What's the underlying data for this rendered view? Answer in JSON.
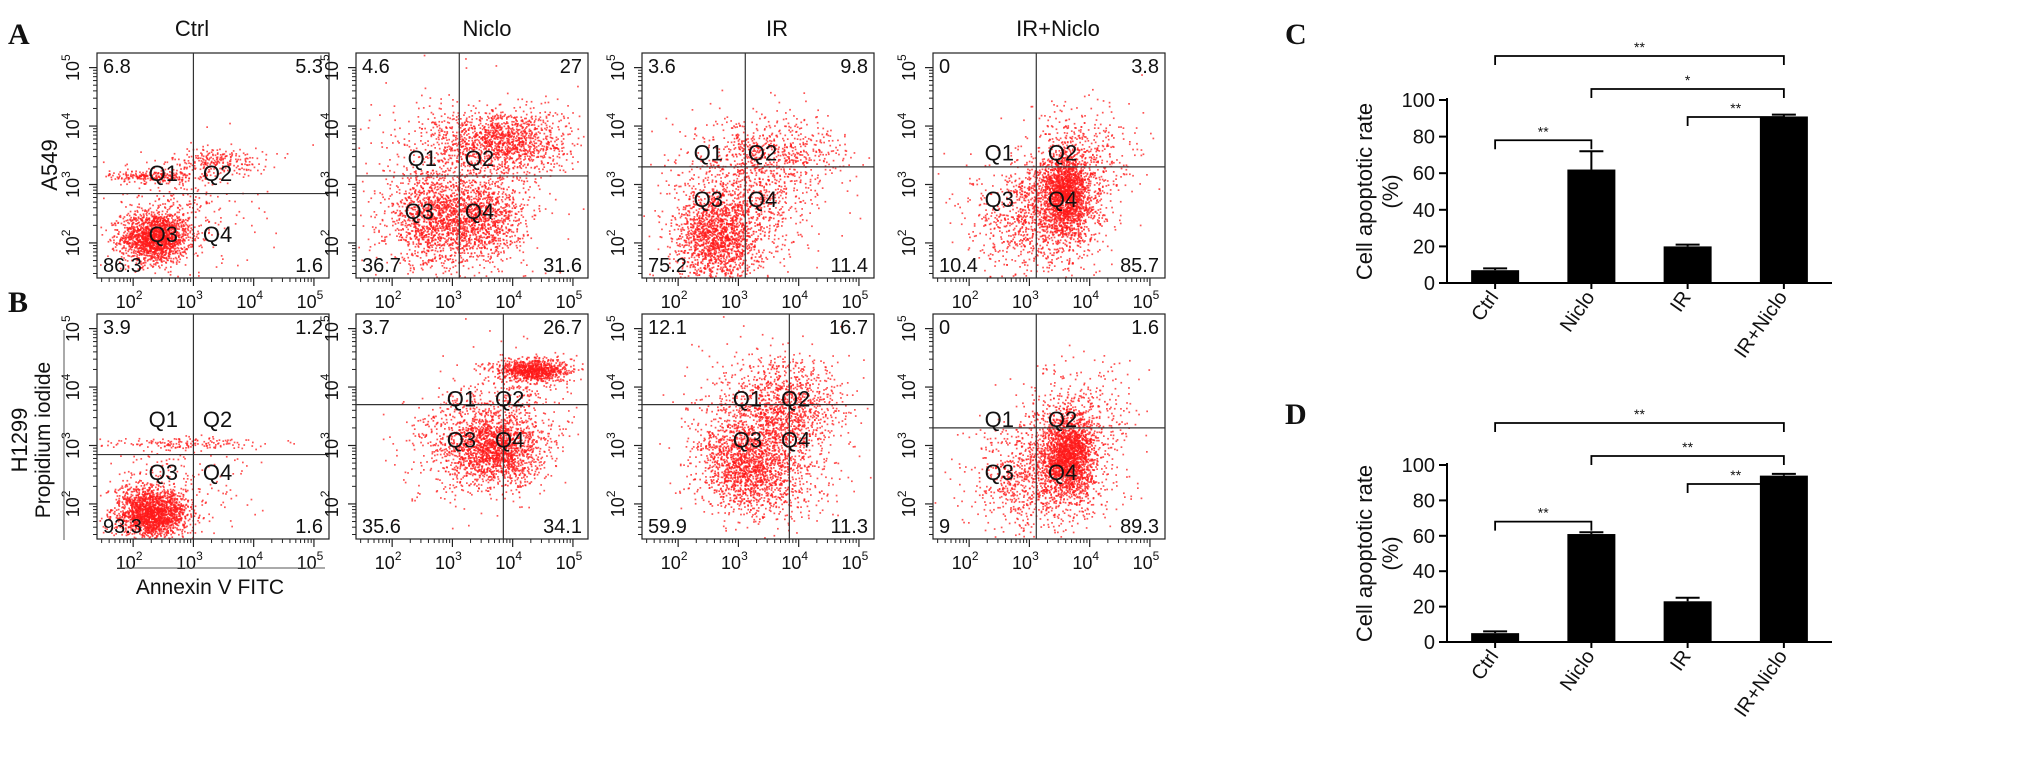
{
  "figure": {
    "panel_letters": [
      "A",
      "B",
      "C",
      "D"
    ],
    "columns": [
      "Ctrl",
      "Niclo",
      "IR",
      "IR+Niclo"
    ],
    "rows": [
      "A549",
      "H1299"
    ],
    "y_axis_label": "Propidium iodide",
    "x_axis_label": "Annexin V FITC",
    "quadrant_labels": [
      "Q1",
      "Q2",
      "Q3",
      "Q4"
    ],
    "log_ticks": [
      {
        "base": "10",
        "exp": "2"
      },
      {
        "base": "10",
        "exp": "3"
      },
      {
        "base": "10",
        "exp": "4"
      },
      {
        "base": "10",
        "exp": "5"
      }
    ],
    "colors": {
      "dots": "#ff1a1a",
      "bars": "#000000",
      "axes": "#222222"
    }
  },
  "chart_data": [
    {
      "type": "scatter",
      "panel": "A",
      "row": "A549",
      "x_scale": "log",
      "y_scale": "log",
      "plots": [
        {
          "column": "Ctrl",
          "q1": "6.8",
          "q2": "5.3",
          "q3": "86.3",
          "q4": "1.6",
          "gate_x": 1000,
          "gate_y": 700
        },
        {
          "column": "Niclo",
          "q1": "4.6",
          "q2": "27",
          "q3": "36.7",
          "q4": "31.6",
          "gate_x": 1300,
          "gate_y": 1400
        },
        {
          "column": "IR",
          "q1": "3.6",
          "q2": "9.8",
          "q3": "75.2",
          "q4": "11.4",
          "gate_x": 1300,
          "gate_y": 2000
        },
        {
          "column": "IR+Niclo",
          "q1": "0",
          "q2": "3.8",
          "q3": "10.4",
          "q4": "85.7",
          "gate_x": 1300,
          "gate_y": 2000
        }
      ]
    },
    {
      "type": "scatter",
      "panel": "B",
      "row": "H1299",
      "x_scale": "log",
      "y_scale": "log",
      "plots": [
        {
          "column": "Ctrl",
          "q1": "3.9",
          "q2": "1.2",
          "q3": "93.3",
          "q4": "1.6",
          "gate_x": 1000,
          "gate_y": 700
        },
        {
          "column": "Niclo",
          "q1": "3.7",
          "q2": "26.7",
          "q3": "35.6",
          "q4": "34.1",
          "gate_x": 7000,
          "gate_y": 5000
        },
        {
          "column": "IR",
          "q1": "12.1",
          "q2": "16.7",
          "q3": "59.9",
          "q4": "11.3",
          "gate_x": 7000,
          "gate_y": 5000
        },
        {
          "column": "IR+Niclo",
          "q1": "0",
          "q2": "1.6",
          "q3": "9",
          "q4": "89.3",
          "gate_x": 1300,
          "gate_y": 2000
        }
      ]
    },
    {
      "type": "bar",
      "panel": "C",
      "categories": [
        "Ctrl",
        "Niclo",
        "IR",
        "IR+Niclo"
      ],
      "values": [
        7,
        62,
        20,
        91
      ],
      "errors": [
        1,
        10,
        1,
        1
      ],
      "ylabel": "Cell apoptotic rate\n(%)",
      "ylim": [
        0,
        100
      ],
      "yticks": [
        "0",
        "20",
        "40",
        "60",
        "80",
        "100"
      ],
      "significance": [
        {
          "from": 0,
          "to": 3,
          "label": "**"
        },
        {
          "from": 1,
          "to": 3,
          "label": "*"
        },
        {
          "from": 2,
          "to": 3,
          "label": "**"
        },
        {
          "from": 0,
          "to": 1,
          "label": "**"
        }
      ]
    },
    {
      "type": "bar",
      "panel": "D",
      "categories": [
        "Ctrl",
        "Niclo",
        "IR",
        "IR+Niclo"
      ],
      "values": [
        5,
        61,
        23,
        94
      ],
      "errors": [
        1,
        1,
        2,
        1
      ],
      "ylabel": "Cell apoptotic rate\n(%)",
      "ylim": [
        0,
        100
      ],
      "yticks": [
        "0",
        "20",
        "40",
        "60",
        "80",
        "100"
      ],
      "significance": [
        {
          "from": 0,
          "to": 3,
          "label": "**"
        },
        {
          "from": 1,
          "to": 3,
          "label": "**"
        },
        {
          "from": 2,
          "to": 3,
          "label": "**"
        },
        {
          "from": 0,
          "to": 1,
          "label": "**"
        }
      ]
    }
  ]
}
